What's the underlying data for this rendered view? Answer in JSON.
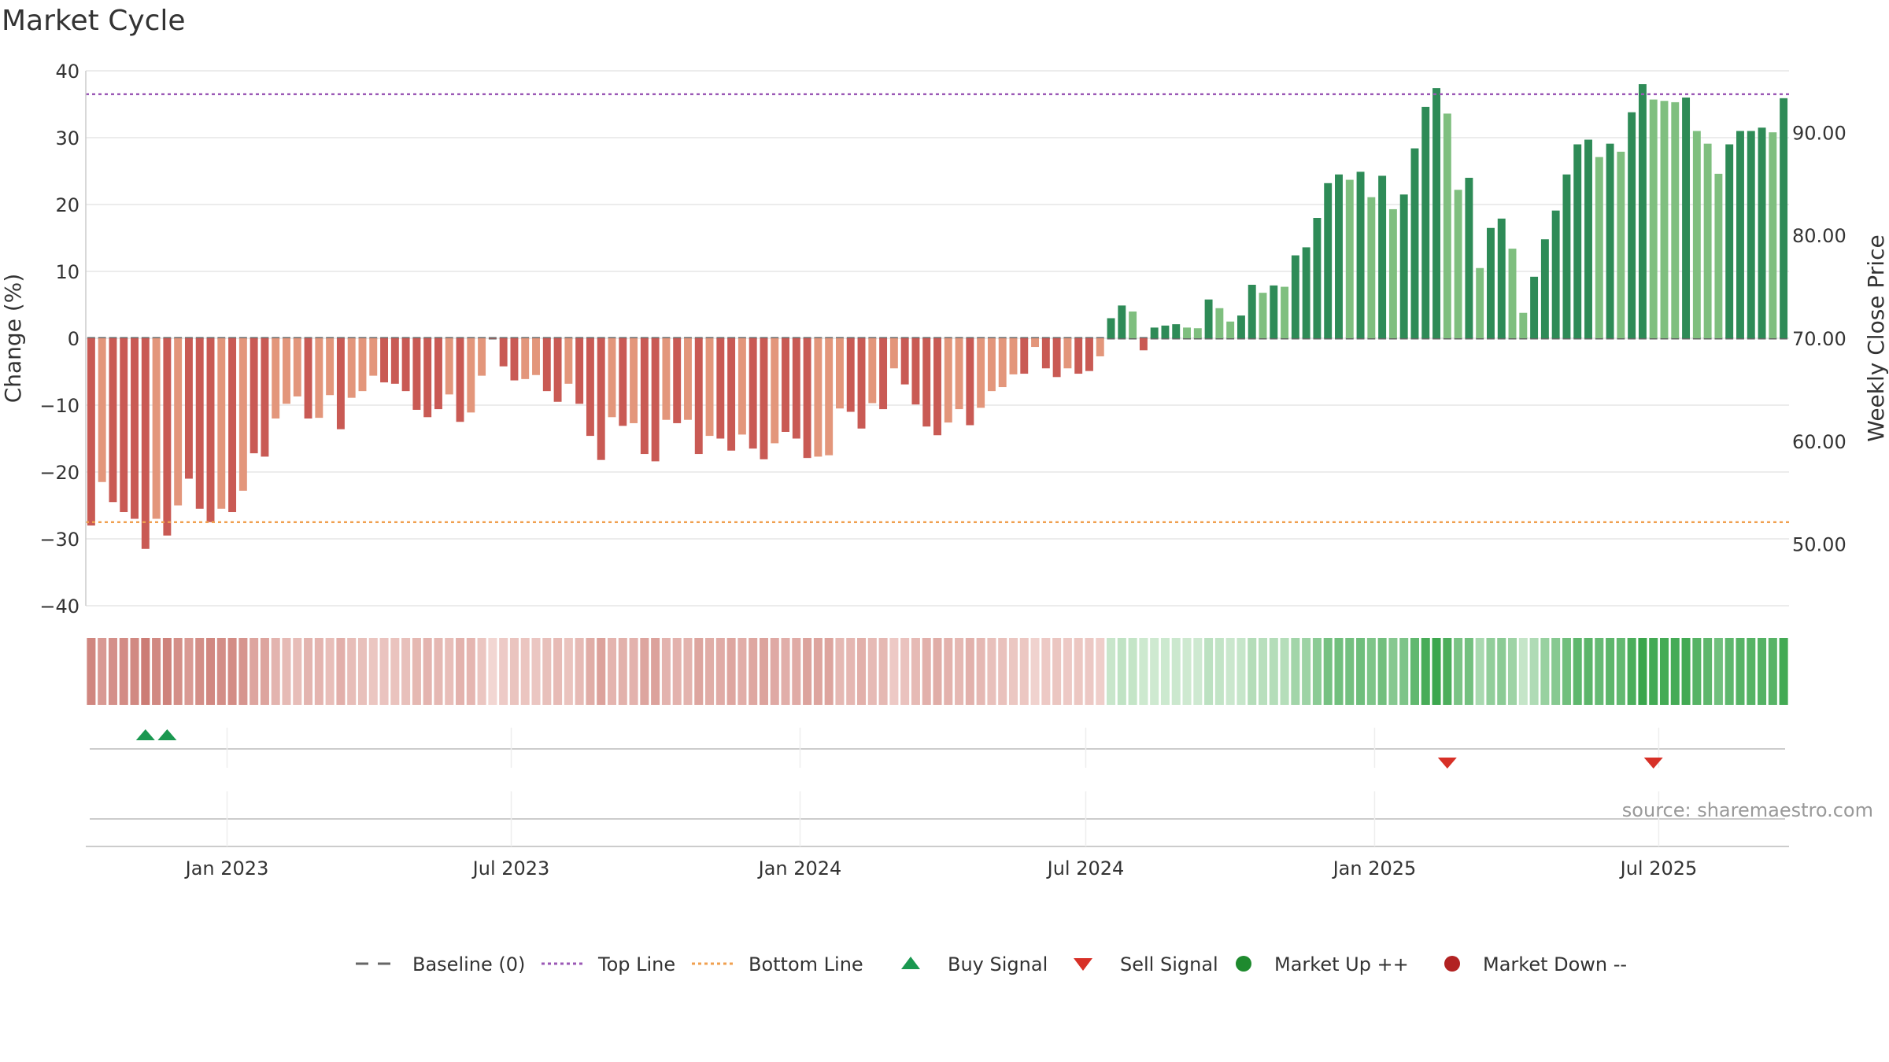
{
  "chart_data": {
    "type": "bar",
    "title": "Market Cycle",
    "ylabel": "Change (%)",
    "y2label": "Weekly Close Price",
    "ylim": [
      -40,
      40
    ],
    "y2lim": [
      44.0,
      96.0
    ],
    "yticks": [
      "40",
      "30",
      "20",
      "10",
      "0",
      "−10",
      "−20",
      "−30",
      "−40"
    ],
    "y2ticks": [
      "90.00",
      "80.00",
      "70.00",
      "60.00",
      "50.00"
    ],
    "x_start": "2022-10-03",
    "x_end": "2025-09-22",
    "xticks": [
      {
        "date": "2023-01-01",
        "label": "Jan 2023"
      },
      {
        "date": "2023-07-01",
        "label": "Jul 2023"
      },
      {
        "date": "2024-01-01",
        "label": "Jan 2024"
      },
      {
        "date": "2024-07-01",
        "label": "Jul 2024"
      },
      {
        "date": "2025-01-01",
        "label": "Jan 2025"
      },
      {
        "date": "2025-07-01",
        "label": "Jul 2025"
      }
    ],
    "top_line": 36.5,
    "bottom_line": -27.5,
    "values": [
      -28,
      -21.5,
      -24.5,
      -26,
      -27,
      -31.5,
      -27,
      -29.5,
      -25,
      -21,
      -25.5,
      -27.5,
      -25.5,
      -26,
      -22.8,
      -17.2,
      -17.7,
      -12,
      -9.8,
      -8.7,
      -12,
      -11.9,
      -8.5,
      -13.6,
      -8.9,
      -7.9,
      -5.6,
      -6.6,
      -6.8,
      -7.9,
      -10.7,
      -11.8,
      -10.6,
      -8.4,
      -12.5,
      -11.1,
      -5.6,
      0,
      -4.2,
      -6.3,
      -6.1,
      -5.5,
      -7.9,
      -9.5,
      -6.8,
      -9.8,
      -14.6,
      -18.2,
      -11.8,
      -13.1,
      -12.7,
      -17.3,
      -18.4,
      -12.2,
      -12.7,
      -12.2,
      -17.3,
      -14.6,
      -15,
      -16.8,
      -14.4,
      -16.5,
      -18.1,
      -15.7,
      -14,
      -15,
      -17.9,
      -17.7,
      -17.5,
      -10.5,
      -11,
      -13.5,
      -9.7,
      -10.6,
      -4.5,
      -6.9,
      -9.9,
      -13.2,
      -14.5,
      -12.6,
      -10.6,
      -13,
      -10.4,
      -7.9,
      -7.3,
      -5.4,
      -5.3,
      -1.3,
      -4.5,
      -5.8,
      -4.5,
      -5.3,
      -4.9,
      -2.7,
      3,
      4.9,
      4,
      -1.8,
      1.6,
      1.9,
      2.1,
      1.6,
      1.5,
      5.8,
      4.5,
      2.5,
      3.4,
      8,
      6.8,
      7.9,
      7.7,
      12.4,
      13.6,
      18,
      23.2,
      24.5,
      23.7,
      24.9,
      21.1,
      24.3,
      19.3,
      21.5,
      28.4,
      34.6,
      37.4,
      33.6,
      22.2,
      24,
      10.5,
      16.5,
      17.9,
      13.4,
      3.8,
      9.2,
      14.8,
      19.1,
      24.5,
      29,
      29.7,
      27.1,
      29.1,
      27.9,
      33.8,
      38,
      35.7,
      35.5,
      35.3,
      36,
      31,
      29.1,
      24.6,
      29,
      31,
      31,
      31.5,
      30.8,
      35.9
    ],
    "colors": [
      "#c95a54",
      "#e3967b",
      "#c95a54",
      "#c95a54",
      "#c95a54",
      "#c95a54",
      "#e3967b",
      "#c95a54",
      "#e3967b",
      "#c95a54",
      "#c95a54",
      "#c95a54",
      "#e3967b",
      "#c95a54",
      "#e3967b",
      "#c95a54",
      "#c95a54",
      "#e3967b",
      "#e3967b",
      "#e3967b",
      "#c95a54",
      "#e3967b",
      "#e3967b",
      "#c95a54",
      "#e3967b",
      "#e3967b",
      "#e3967b",
      "#c95a54",
      "#c95a54",
      "#c95a54",
      "#c95a54",
      "#c95a54",
      "#c95a54",
      "#e3967b",
      "#c95a54",
      "#e3967b",
      "#e3967b",
      "#c95a54",
      "#c95a54",
      "#c95a54",
      "#e3967b",
      "#e3967b",
      "#c95a54",
      "#c95a54",
      "#e3967b",
      "#c95a54",
      "#c95a54",
      "#c95a54",
      "#e3967b",
      "#c95a54",
      "#e3967b",
      "#c95a54",
      "#c95a54",
      "#e3967b",
      "#c95a54",
      "#e3967b",
      "#c95a54",
      "#e3967b",
      "#c95a54",
      "#c95a54",
      "#e3967b",
      "#c95a54",
      "#c95a54",
      "#e3967b",
      "#c95a54",
      "#c95a54",
      "#c95a54",
      "#e3967b",
      "#e3967b",
      "#e3967b",
      "#c95a54",
      "#c95a54",
      "#e3967b",
      "#c95a54",
      "#e3967b",
      "#c95a54",
      "#c95a54",
      "#c95a54",
      "#c95a54",
      "#e3967b",
      "#e3967b",
      "#c95a54",
      "#e3967b",
      "#e3967b",
      "#e3967b",
      "#e3967b",
      "#c95a54",
      "#e3967b",
      "#c95a54",
      "#c95a54",
      "#e3967b",
      "#c95a54",
      "#c95a54",
      "#e3967b",
      "#2e8b57",
      "#2e8b57",
      "#7fbf7f",
      "#c95a54",
      "#2e8b57",
      "#2e8b57",
      "#2e8b57",
      "#7fbf7f",
      "#7fbf7f",
      "#2e8b57",
      "#7fbf7f",
      "#7fbf7f",
      "#2e8b57",
      "#2e8b57",
      "#7fbf7f",
      "#2e8b57",
      "#7fbf7f",
      "#2e8b57",
      "#2e8b57",
      "#2e8b57",
      "#2e8b57",
      "#2e8b57",
      "#7fbf7f",
      "#2e8b57",
      "#7fbf7f",
      "#2e8b57",
      "#7fbf7f",
      "#2e8b57",
      "#2e8b57",
      "#2e8b57",
      "#2e8b57",
      "#7fbf7f",
      "#7fbf7f",
      "#2e8b57",
      "#7fbf7f",
      "#2e8b57",
      "#2e8b57",
      "#7fbf7f",
      "#7fbf7f",
      "#2e8b57",
      "#2e8b57",
      "#2e8b57",
      "#2e8b57",
      "#2e8b57",
      "#2e8b57",
      "#7fbf7f",
      "#2e8b57",
      "#7fbf7f",
      "#2e8b57",
      "#2e8b57",
      "#7fbf7f",
      "#7fbf7f",
      "#7fbf7f",
      "#2e8b57",
      "#7fbf7f",
      "#7fbf7f",
      "#7fbf7f",
      "#2e8b57",
      "#2e8b57",
      "#2e8b57",
      "#2e8b57",
      "#7fbf7f",
      "#2e8b57"
    ],
    "buy_signals": [
      5,
      7
    ],
    "sell_signals": [
      125,
      144
    ],
    "source": "source: sharemaestro.com",
    "legend": [
      {
        "label": "Baseline (0)",
        "symbol": "dash",
        "color": "#666666"
      },
      {
        "label": "Top Line",
        "symbol": "dot",
        "color": "#9b59b6"
      },
      {
        "label": "Bottom Line",
        "symbol": "dot",
        "color": "#f0a050"
      },
      {
        "label": "Buy Signal",
        "symbol": "triangle-up",
        "color": "#1a9850"
      },
      {
        "label": "Sell Signal",
        "symbol": "triangle-down",
        "color": "#d73027"
      },
      {
        "label": "Market Up ++",
        "symbol": "circle",
        "color": "#1e8a2e"
      },
      {
        "label": "Market Down --",
        "symbol": "circle",
        "color": "#b22222"
      }
    ],
    "legend_position": "bottom"
  }
}
